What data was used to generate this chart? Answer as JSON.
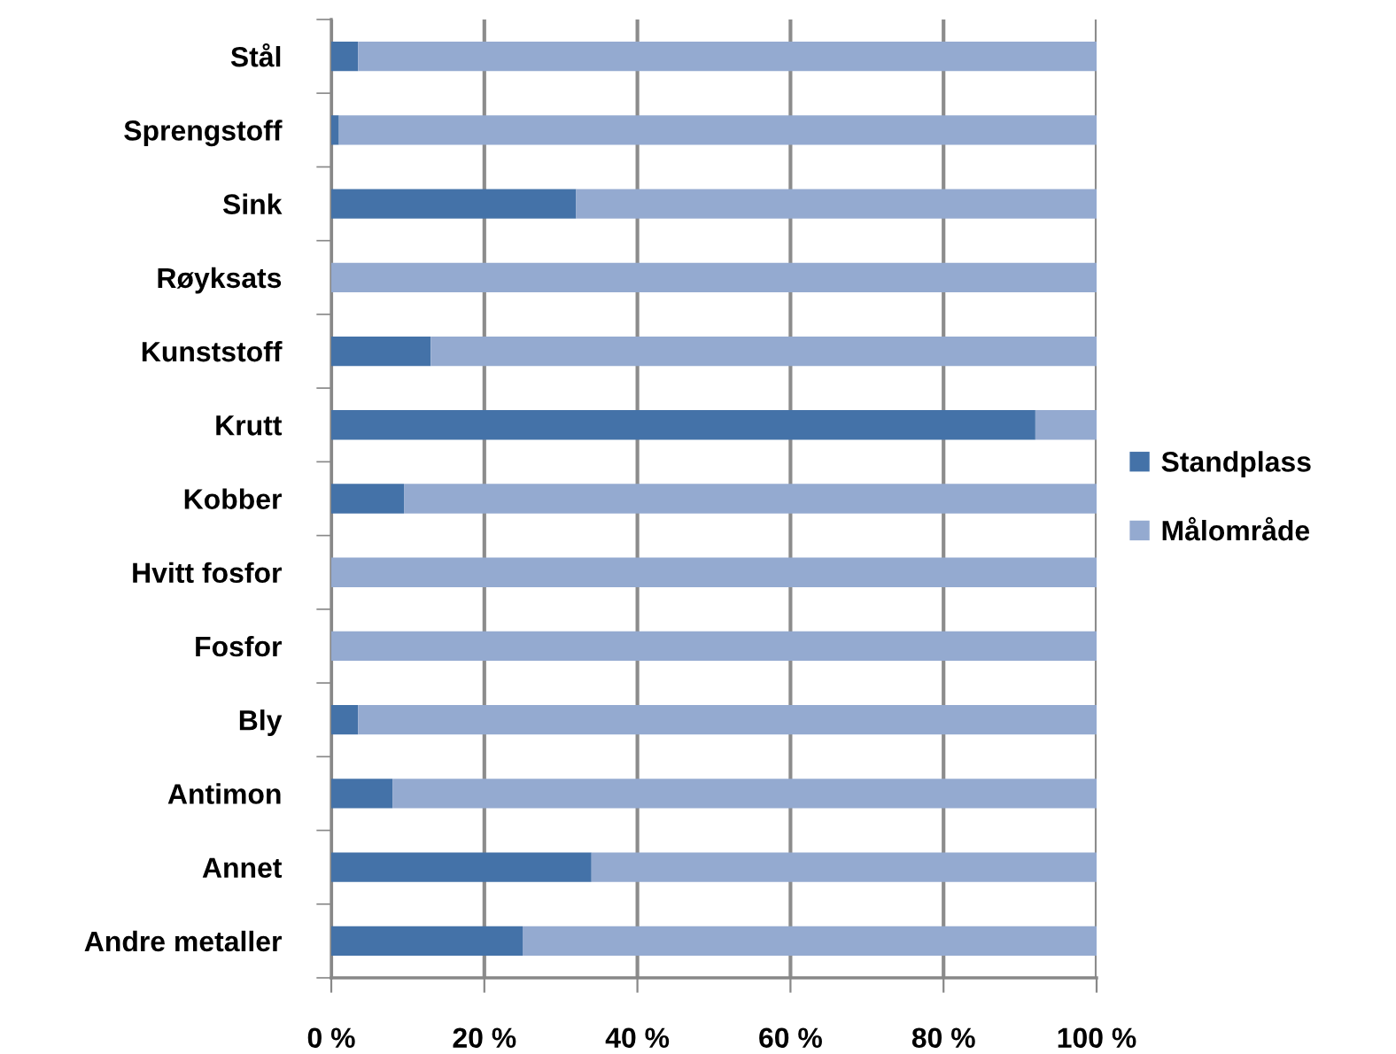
{
  "chart_data": {
    "type": "bar",
    "orientation": "horizontal",
    "stacked": true,
    "categories": [
      "Stål",
      "Sprengstoff",
      "Sink",
      "Røyksats",
      "Kunststoff",
      "Krutt",
      "Kobber",
      "Hvitt fosfor",
      "Fosfor",
      "Bly",
      "Antimon",
      "Annet",
      "Andre metaller"
    ],
    "series": [
      {
        "name": "Standplass",
        "color": "#4472a8",
        "values": [
          3.5,
          1,
          32,
          0,
          13,
          92,
          9.5,
          0,
          0,
          3.5,
          8,
          34,
          25
        ]
      },
      {
        "name": "Målområde",
        "color": "#94aad0",
        "values": [
          96.5,
          99,
          68,
          100,
          87,
          8,
          90.5,
          100,
          100,
          96.5,
          92,
          66,
          75
        ]
      }
    ],
    "xlim": [
      0,
      100
    ],
    "xticks": [
      {
        "value": 0,
        "label": "0 %"
      },
      {
        "value": 20,
        "label": "20 %"
      },
      {
        "value": 40,
        "label": "40 %"
      },
      {
        "value": 60,
        "label": "60 %"
      },
      {
        "value": 80,
        "label": "80 %"
      },
      {
        "value": 100,
        "label": "100 %"
      }
    ],
    "grid": "x",
    "legend": "right"
  }
}
